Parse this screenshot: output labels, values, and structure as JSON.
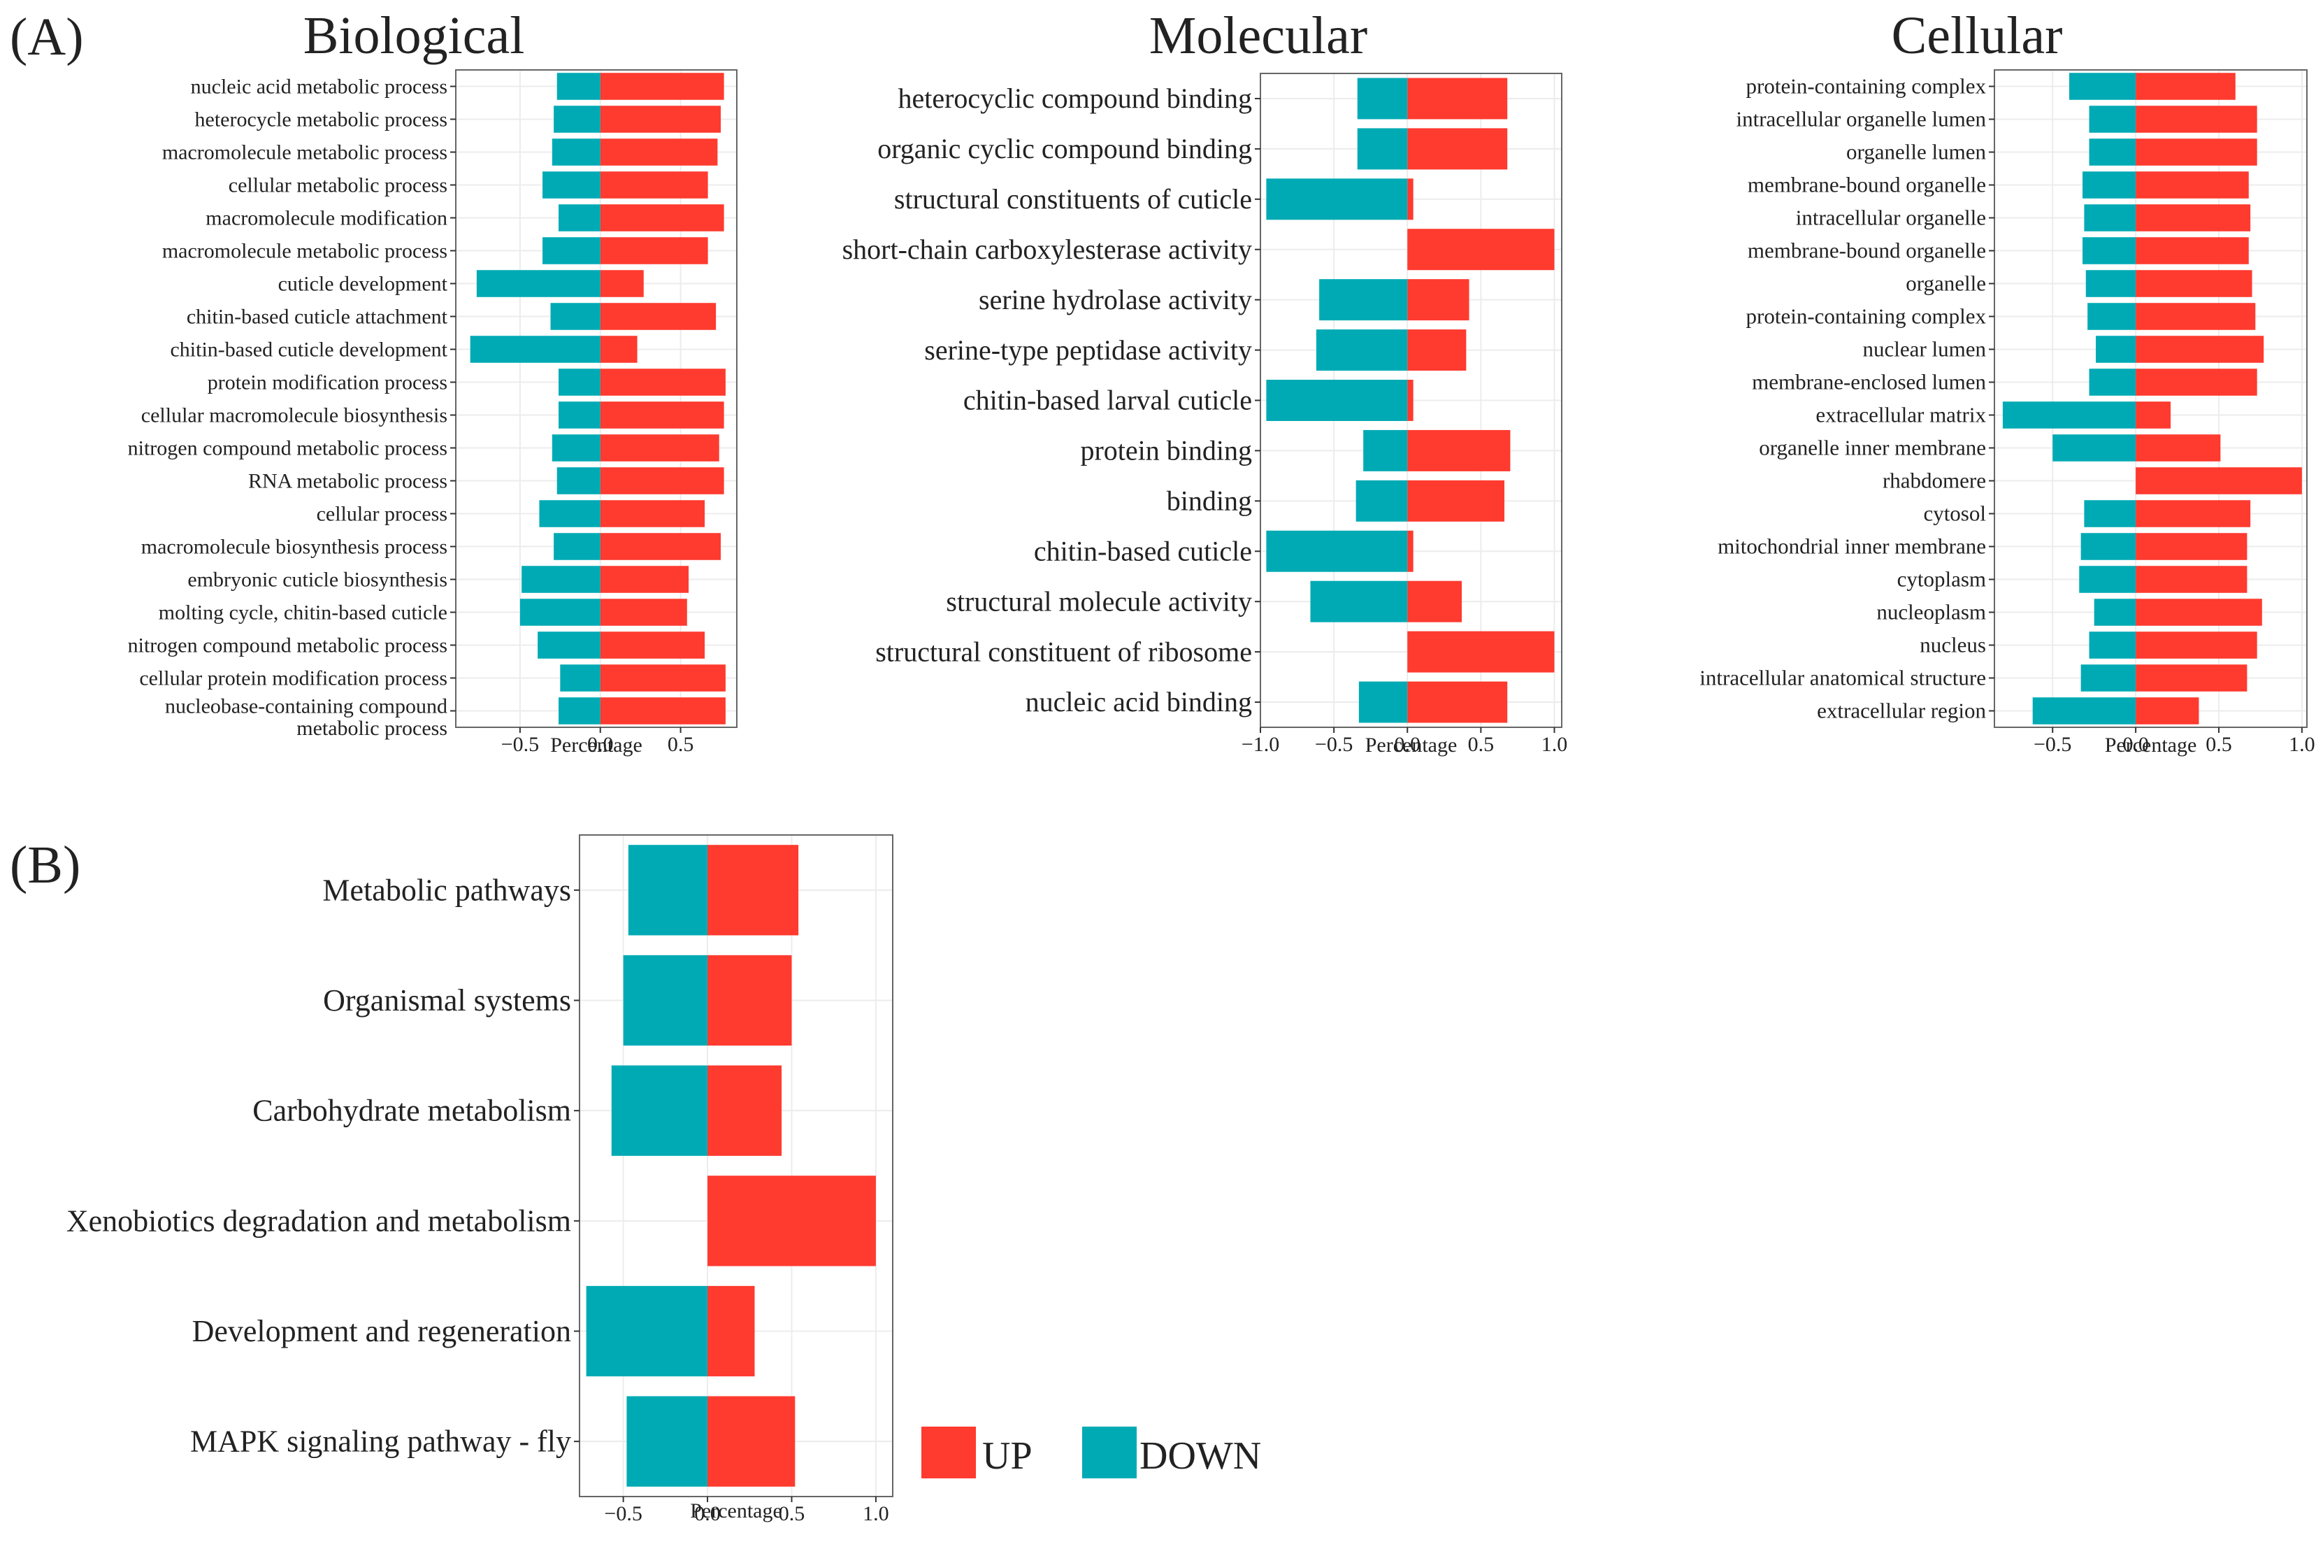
{
  "panel_labels": {
    "a": "(A)",
    "b": "(B)"
  },
  "legend": {
    "up": {
      "label": "UP",
      "color": "#ff3a2f"
    },
    "down": {
      "label": "DOWN",
      "color": "#00aab4"
    }
  },
  "colors": {
    "up": "#ff3a2f",
    "down": "#00aab4",
    "grid": "#ececec",
    "frame": "#666666"
  },
  "chart_data": [
    {
      "type": "bar",
      "orientation": "horizontal-diverging",
      "title": "Biological",
      "xlabel": "Percentage",
      "xlim": [
        -0.9,
        0.85
      ],
      "xticks": [
        -0.5,
        0.0,
        0.5
      ],
      "tick_labels": [
        "−0.5",
        "0.0",
        "0.5"
      ],
      "grid": true,
      "categories": [
        "nucleic acid metabolic process",
        "heterocycle metabolic process",
        "macromolecule metabolic process",
        "cellular metabolic process",
        "macromolecule modification",
        "macromolecule metabolic process",
        "cuticle development",
        "chitin-based cuticle attachment",
        "chitin-based cuticle development",
        "protein modification process",
        "cellular macromolecule biosynthesis",
        "nitrogen compound metabolic process",
        "RNA metabolic process",
        "cellular process",
        "macromolecule biosynthesis process",
        "embryonic cuticle biosynthesis",
        "molting cycle, chitin-based cuticle",
        "nitrogen compound metabolic process",
        "cellular protein modification process",
        "nucleobase-containing compound metabolic process"
      ],
      "series": [
        {
          "name": "UP",
          "values": [
            0.77,
            0.75,
            0.73,
            0.67,
            0.77,
            0.67,
            0.27,
            0.72,
            0.23,
            0.78,
            0.77,
            0.74,
            0.77,
            0.65,
            0.75,
            0.55,
            0.54,
            0.65,
            0.78,
            0.78
          ]
        },
        {
          "name": "DOWN",
          "values": [
            -0.27,
            -0.29,
            -0.3,
            -0.36,
            -0.26,
            -0.36,
            -0.77,
            -0.31,
            -0.81,
            -0.26,
            -0.26,
            -0.3,
            -0.27,
            -0.38,
            -0.29,
            -0.49,
            -0.5,
            -0.39,
            -0.25,
            -0.26
          ]
        }
      ]
    },
    {
      "type": "bar",
      "orientation": "horizontal-diverging",
      "title": "Molecular",
      "xlabel": "Percentage",
      "xlim": [
        -1.0,
        1.05
      ],
      "xticks": [
        -1.0,
        -0.5,
        0.0,
        0.5,
        1.0
      ],
      "tick_labels": [
        "−1.0",
        "−0.5",
        "0.0",
        "0.5",
        "1.0"
      ],
      "grid": true,
      "categories": [
        "heterocyclic compound binding",
        "organic cyclic compound binding",
        "structural constituents of cuticle",
        "short-chain carboxylesterase activity",
        "serine hydrolase activity",
        "serine-type peptidase activity",
        "chitin-based larval cuticle",
        "protein binding",
        "binding",
        "chitin-based cuticle",
        "structural molecule activity",
        "structural constituent of ribosome",
        "nucleic acid binding"
      ],
      "series": [
        {
          "name": "UP",
          "values": [
            0.68,
            0.68,
            0.04,
            1.0,
            0.42,
            0.4,
            0.04,
            0.7,
            0.66,
            0.04,
            0.37,
            1.0,
            0.68
          ]
        },
        {
          "name": "DOWN",
          "values": [
            -0.34,
            -0.34,
            -0.96,
            0.0,
            -0.6,
            -0.62,
            -0.96,
            -0.3,
            -0.35,
            -0.96,
            -0.66,
            0.0,
            -0.33
          ]
        }
      ]
    },
    {
      "type": "bar",
      "orientation": "horizontal-diverging",
      "title": "Cellular",
      "xlabel": "Percentage",
      "xlim": [
        -0.85,
        1.03
      ],
      "xticks": [
        -0.5,
        0.0,
        0.5,
        1.0
      ],
      "tick_labels": [
        "−0.5",
        "0.0",
        "0.5",
        "1.0"
      ],
      "grid": true,
      "categories": [
        "protein-containing complex",
        "intracellular organelle lumen",
        "organelle lumen",
        "membrane-bound organelle",
        "intracellular organelle",
        "membrane-bound organelle",
        "organelle",
        "protein-containing complex",
        "nuclear lumen",
        "membrane-enclosed lumen",
        "extracellular matrix",
        "organelle inner membrane",
        "rhabdomere",
        "cytosol",
        "mitochondrial inner membrane",
        "cytoplasm",
        "nucleoplasm",
        "nucleus",
        "intracellular anatomical structure",
        "extracellular region"
      ],
      "series": [
        {
          "name": "UP",
          "values": [
            0.6,
            0.73,
            0.73,
            0.68,
            0.69,
            0.68,
            0.7,
            0.72,
            0.77,
            0.73,
            0.21,
            0.51,
            1.0,
            0.69,
            0.67,
            0.67,
            0.76,
            0.73,
            0.67,
            0.38
          ]
        },
        {
          "name": "DOWN",
          "values": [
            -0.4,
            -0.28,
            -0.28,
            -0.32,
            -0.31,
            -0.32,
            -0.3,
            -0.29,
            -0.24,
            -0.28,
            -0.8,
            -0.5,
            0.0,
            -0.31,
            -0.33,
            -0.34,
            -0.25,
            -0.28,
            -0.33,
            -0.62
          ]
        }
      ]
    },
    {
      "type": "bar",
      "orientation": "horizontal-diverging",
      "title": "",
      "xlabel": "Percentage",
      "xlim": [
        -0.76,
        1.1
      ],
      "xticks": [
        -0.5,
        0.0,
        0.5,
        1.0
      ],
      "tick_labels": [
        "−0.5",
        "0.0",
        "0.5",
        "1.0"
      ],
      "grid": true,
      "categories": [
        "Metabolic pathways",
        "Organismal systems",
        "Carbohydrate metabolism",
        "Xenobiotics degradation and metabolism",
        "Development and regeneration",
        "MAPK signaling pathway - fly"
      ],
      "series": [
        {
          "name": "UP",
          "values": [
            0.54,
            0.5,
            0.44,
            1.0,
            0.28,
            0.52
          ]
        },
        {
          "name": "DOWN",
          "values": [
            -0.47,
            -0.5,
            -0.57,
            0.0,
            -0.72,
            -0.48
          ]
        }
      ]
    }
  ]
}
